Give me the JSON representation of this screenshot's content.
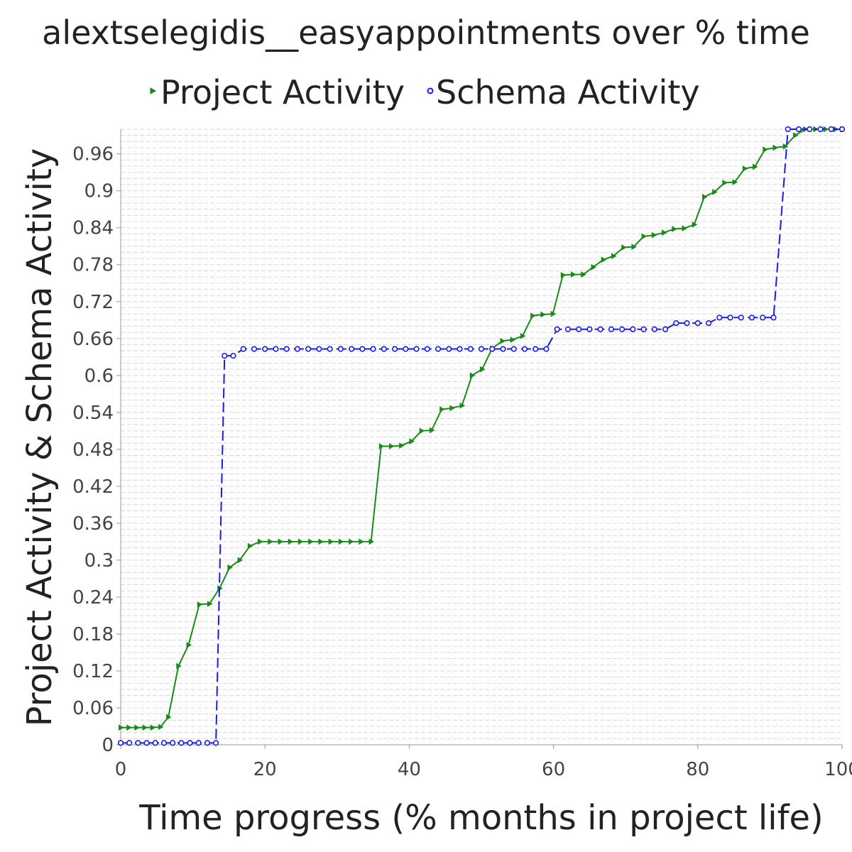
{
  "chart_data": {
    "type": "line",
    "title": "alextselegidis__easyappointments over % time",
    "xlabel": "Time progress (% months in project life)",
    "ylabel": "Project Activity & Schema Activity",
    "xlim": [
      0,
      100
    ],
    "ylim": [
      0,
      1.0
    ],
    "x_ticks": [
      "0",
      "20",
      "40",
      "60",
      "80",
      "100"
    ],
    "y_ticks": [
      "0",
      "0.06",
      "0.12",
      "0.18",
      "0.24",
      "0.3",
      "0.36",
      "0.42",
      "0.48",
      "0.54",
      "0.6",
      "0.66",
      "0.72",
      "0.78",
      "0.84",
      "0.9",
      "0.96"
    ],
    "grid": "horizontal-dashed",
    "legend": "top",
    "series": [
      {
        "name": "Project Activity",
        "color": "#1a8a1a",
        "marker": "triangle",
        "points": [
          [
            0,
            0.028
          ],
          [
            1.1,
            0.028
          ],
          [
            2.2,
            0.028
          ],
          [
            3.3,
            0.028
          ],
          [
            4.4,
            0.028
          ],
          [
            5.5,
            0.029
          ],
          [
            6.6,
            0.045
          ],
          [
            8.0,
            0.128
          ],
          [
            9.4,
            0.162
          ],
          [
            10.9,
            0.228
          ],
          [
            12.3,
            0.229
          ],
          [
            13.7,
            0.254
          ],
          [
            15.1,
            0.288
          ],
          [
            16.5,
            0.3
          ],
          [
            17.9,
            0.323
          ],
          [
            19.3,
            0.33
          ],
          [
            20.7,
            0.33
          ],
          [
            22.1,
            0.33
          ],
          [
            23.5,
            0.33
          ],
          [
            24.9,
            0.33
          ],
          [
            26.3,
            0.33
          ],
          [
            27.7,
            0.33
          ],
          [
            29.1,
            0.33
          ],
          [
            30.5,
            0.33
          ],
          [
            31.9,
            0.33
          ],
          [
            33.3,
            0.33
          ],
          [
            34.7,
            0.33
          ],
          [
            36.1,
            0.485
          ],
          [
            37.5,
            0.485
          ],
          [
            38.9,
            0.486
          ],
          [
            40.3,
            0.493
          ],
          [
            41.7,
            0.51
          ],
          [
            43.1,
            0.511
          ],
          [
            44.5,
            0.545
          ],
          [
            45.9,
            0.547
          ],
          [
            47.3,
            0.551
          ],
          [
            48.7,
            0.6
          ],
          [
            50.1,
            0.61
          ],
          [
            51.5,
            0.644
          ],
          [
            52.9,
            0.656
          ],
          [
            54.3,
            0.658
          ],
          [
            55.7,
            0.664
          ],
          [
            57.1,
            0.697
          ],
          [
            58.5,
            0.699
          ],
          [
            59.9,
            0.7
          ],
          [
            61.3,
            0.763
          ],
          [
            62.7,
            0.764
          ],
          [
            64.1,
            0.764
          ],
          [
            65.5,
            0.776
          ],
          [
            66.9,
            0.788
          ],
          [
            68.3,
            0.794
          ],
          [
            69.7,
            0.808
          ],
          [
            71.1,
            0.809
          ],
          [
            72.5,
            0.826
          ],
          [
            73.9,
            0.828
          ],
          [
            75.3,
            0.832
          ],
          [
            76.7,
            0.838
          ],
          [
            78.1,
            0.839
          ],
          [
            79.5,
            0.845
          ],
          [
            80.9,
            0.89
          ],
          [
            82.3,
            0.898
          ],
          [
            83.7,
            0.913
          ],
          [
            85.1,
            0.914
          ],
          [
            86.5,
            0.936
          ],
          [
            87.9,
            0.939
          ],
          [
            89.3,
            0.967
          ],
          [
            90.7,
            0.97
          ],
          [
            92.1,
            0.972
          ],
          [
            93.5,
            0.99
          ],
          [
            94.9,
            1.0
          ],
          [
            96.3,
            1.0
          ],
          [
            97.7,
            1.0
          ],
          [
            99.1,
            1.0
          ],
          [
            100,
            1.0
          ]
        ]
      },
      {
        "name": "Schema Activity",
        "color": "#1a1ae6",
        "marker": "circle",
        "points": [
          [
            0,
            0.003
          ],
          [
            1.2,
            0.003
          ],
          [
            2.4,
            0.003
          ],
          [
            3.6,
            0.003
          ],
          [
            4.8,
            0.003
          ],
          [
            6.0,
            0.003
          ],
          [
            7.2,
            0.003
          ],
          [
            8.4,
            0.003
          ],
          [
            9.6,
            0.003
          ],
          [
            10.8,
            0.003
          ],
          [
            12.0,
            0.003
          ],
          [
            13.2,
            0.003
          ],
          [
            14.4,
            0.632
          ],
          [
            15.6,
            0.632
          ],
          [
            17.0,
            0.643
          ],
          [
            18.5,
            0.643
          ],
          [
            20.0,
            0.643
          ],
          [
            21.5,
            0.643
          ],
          [
            23.0,
            0.643
          ],
          [
            24.5,
            0.643
          ],
          [
            26.0,
            0.643
          ],
          [
            27.5,
            0.643
          ],
          [
            29.0,
            0.643
          ],
          [
            30.5,
            0.643
          ],
          [
            32.0,
            0.643
          ],
          [
            33.5,
            0.643
          ],
          [
            35.0,
            0.643
          ],
          [
            36.5,
            0.643
          ],
          [
            38.0,
            0.643
          ],
          [
            39.5,
            0.643
          ],
          [
            41.0,
            0.643
          ],
          [
            42.5,
            0.643
          ],
          [
            44.0,
            0.643
          ],
          [
            45.5,
            0.643
          ],
          [
            47.0,
            0.643
          ],
          [
            48.5,
            0.643
          ],
          [
            50.0,
            0.643
          ],
          [
            51.5,
            0.643
          ],
          [
            53.0,
            0.643
          ],
          [
            54.5,
            0.643
          ],
          [
            56.0,
            0.643
          ],
          [
            57.5,
            0.643
          ],
          [
            59.0,
            0.643
          ],
          [
            60.5,
            0.675
          ],
          [
            62.0,
            0.675
          ],
          [
            63.5,
            0.675
          ],
          [
            65.0,
            0.675
          ],
          [
            66.5,
            0.675
          ],
          [
            68.0,
            0.675
          ],
          [
            69.5,
            0.675
          ],
          [
            71.0,
            0.675
          ],
          [
            72.5,
            0.675
          ],
          [
            74.0,
            0.675
          ],
          [
            75.5,
            0.675
          ],
          [
            77.0,
            0.685
          ],
          [
            78.5,
            0.685
          ],
          [
            80.0,
            0.685
          ],
          [
            81.5,
            0.685
          ],
          [
            83.0,
            0.694
          ],
          [
            84.5,
            0.694
          ],
          [
            86.0,
            0.694
          ],
          [
            87.5,
            0.694
          ],
          [
            89.0,
            0.694
          ],
          [
            90.5,
            0.694
          ],
          [
            92.5,
            1.0
          ],
          [
            94.0,
            1.0
          ],
          [
            95.5,
            1.0
          ],
          [
            97.0,
            1.0
          ],
          [
            98.5,
            1.0
          ],
          [
            100,
            1.0
          ]
        ]
      }
    ]
  }
}
